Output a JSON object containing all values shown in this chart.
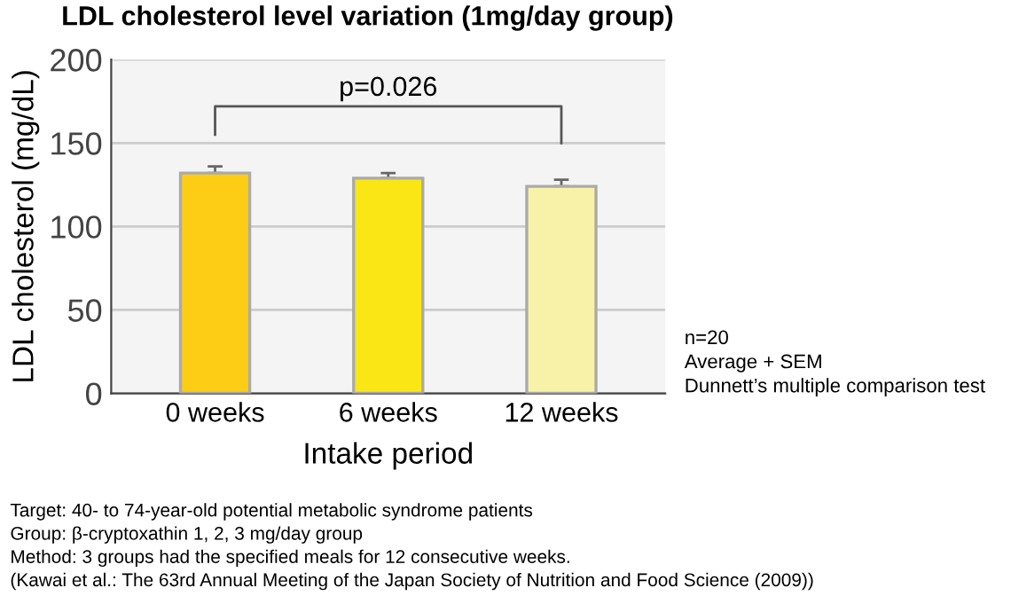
{
  "chart_data": {
    "type": "bar",
    "title": "LDL cholesterol level variation (1mg/day group)",
    "xlabel": "Intake period",
    "ylabel": "LDL cholesterol (mg/dL)",
    "categories": [
      "0 weeks",
      "6 weeks",
      "12 weeks"
    ],
    "values": [
      132,
      129,
      124
    ],
    "errors": [
      [
        132,
        136
      ],
      [
        129,
        132
      ],
      [
        124,
        128
      ]
    ],
    "colors": [
      "#fccd14",
      "#f9e614",
      "#f8f2a8"
    ],
    "ylim": [
      0,
      200
    ],
    "yticks": [
      0,
      50,
      100,
      150,
      200
    ],
    "grid": "y",
    "annotations": [
      "p=0.026",
      "n=20\nAverage + SEM\nDunnett’s multiple comparison test",
      "Target: 40- to 74-year-old potential metabolic syndrome patients\nGroup: β-cryptoxathin 1, 2, 3 mg/day group\nMethod: 3 groups had the specified meals for 12 consecutive weeks.\n(Kawai et al.: The 63rd Annual Meeting of the Japan Society of Nutrition and Food Science (2009))"
    ]
  }
}
